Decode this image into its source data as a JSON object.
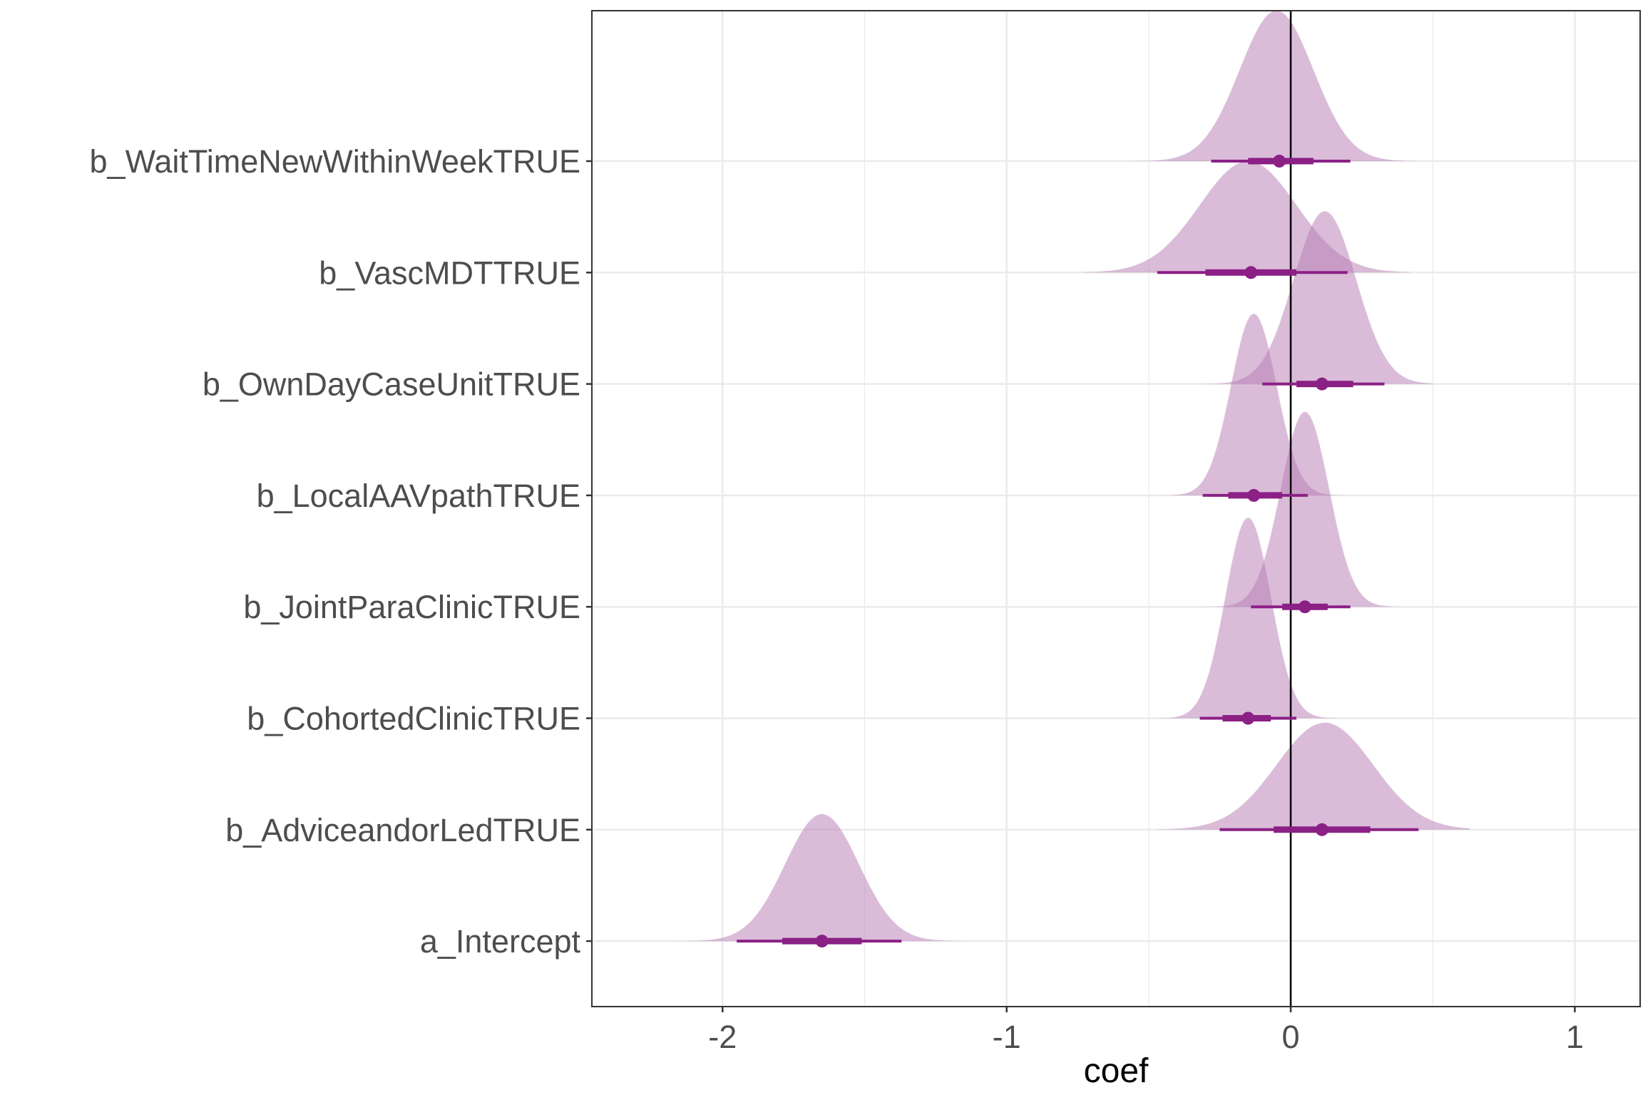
{
  "chart_data": {
    "type": "ridgeline-interval",
    "title": "",
    "xlabel": "coef",
    "ylabel": "",
    "xlim": [
      -2.46,
      1.23
    ],
    "xticks": [
      -2,
      -1,
      0,
      1
    ],
    "xtick_labels": [
      "-2",
      "-1",
      "0",
      "1"
    ],
    "grid": true,
    "reference_line_x": 0,
    "colors": {
      "density_fill": "#b679b4",
      "interval": "#8b2085",
      "axis_text": "#4d4d4d"
    },
    "series": [
      {
        "name": "b_WaitTimeNewWithinWeekTRUE",
        "median": -0.04,
        "interval_66": [
          -0.15,
          0.08
        ],
        "interval_95": [
          -0.28,
          0.21
        ],
        "density_range": [
          -0.57,
          0.44
        ],
        "density_mean": -0.05,
        "density_sd": 0.13,
        "density_peak_rows": 1.35
      },
      {
        "name": "b_VascMDTTRUE",
        "median": -0.14,
        "interval_66": [
          -0.3,
          0.02
        ],
        "interval_95": [
          -0.47,
          0.2
        ],
        "density_range": [
          -0.73,
          0.42
        ],
        "density_mean": -0.15,
        "density_sd": 0.17,
        "density_peak_rows": 1.0
      },
      {
        "name": "b_OwnDayCaseUnitTRUE",
        "median": 0.11,
        "interval_66": [
          0.02,
          0.22
        ],
        "interval_95": [
          -0.1,
          0.33
        ],
        "density_range": [
          -0.35,
          0.5
        ],
        "density_mean": 0.12,
        "density_sd": 0.11,
        "density_peak_rows": 1.55
      },
      {
        "name": "b_LocalAAVpathTRUE",
        "median": -0.13,
        "interval_66": [
          -0.22,
          -0.03
        ],
        "interval_95": [
          -0.31,
          0.06
        ],
        "density_range": [
          -0.45,
          0.2
        ],
        "density_mean": -0.13,
        "density_sd": 0.08,
        "density_peak_rows": 1.63
      },
      {
        "name": "b_JointParaClinicTRUE",
        "median": 0.05,
        "interval_66": [
          -0.03,
          0.13
        ],
        "interval_95": [
          -0.14,
          0.21
        ],
        "density_range": [
          -0.3,
          0.36
        ],
        "density_mean": 0.05,
        "density_sd": 0.085,
        "density_peak_rows": 1.75
      },
      {
        "name": "b_CohortedClinicTRUE",
        "median": -0.15,
        "interval_66": [
          -0.24,
          -0.07
        ],
        "interval_95": [
          -0.32,
          0.02
        ],
        "density_range": [
          -0.5,
          0.2
        ],
        "density_mean": -0.15,
        "density_sd": 0.08,
        "density_peak_rows": 1.8
      },
      {
        "name": "b_AdviceandorLedTRUE",
        "median": 0.11,
        "interval_66": [
          -0.06,
          0.28
        ],
        "interval_95": [
          -0.25,
          0.45
        ],
        "density_range": [
          -0.47,
          0.63
        ],
        "density_mean": 0.12,
        "density_sd": 0.17,
        "density_peak_rows": 0.96
      },
      {
        "name": "a_Intercept",
        "median": -1.65,
        "interval_66": [
          -1.79,
          -1.51
        ],
        "interval_95": [
          -1.95,
          -1.37
        ],
        "density_range": [
          -2.16,
          -1.15
        ],
        "density_mean": -1.65,
        "density_sd": 0.13,
        "density_peak_rows": 1.14
      }
    ]
  }
}
